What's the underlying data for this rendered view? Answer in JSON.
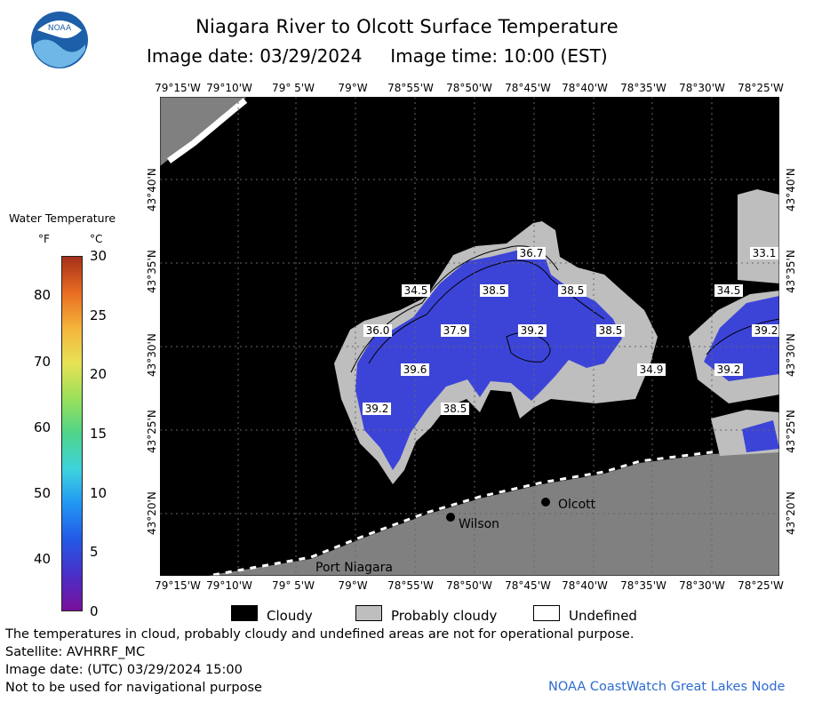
{
  "title": "Niagara River to Olcott Surface Temperature",
  "subtitle": "Image date: 03/29/2024     Image time: 10:00 (EST)",
  "logo_text": "NOAA",
  "lon_labels": [
    "79°15'W",
    "79°10'W",
    "79° 5'W",
    "79°W",
    "78°55'W",
    "78°50'W",
    "78°45'W",
    "78°40'W",
    "78°35'W",
    "78°30'W",
    "78°25'W"
  ],
  "lat_labels": [
    "43°40'N",
    "43°35'N",
    "43°30'N",
    "43°25'N",
    "43°20'N"
  ],
  "colorbar": {
    "title": "Water Temperature",
    "unit_f": "°F",
    "unit_c": "°C",
    "f_ticks": [
      40,
      50,
      60,
      70,
      80
    ],
    "c_ticks": [
      0,
      5,
      10,
      15,
      20,
      25,
      30
    ],
    "range_c": [
      0,
      30
    ]
  },
  "temperature_labels": [
    "36.7",
    "34.5",
    "38.5",
    "38.5",
    "36.0",
    "37.9",
    "39.2",
    "38.5",
    "33.1",
    "34.5",
    "39.2",
    "39.6",
    "39.2",
    "34.9",
    "39.2",
    "38.5"
  ],
  "places": [
    "Olcott",
    "Wilson",
    "Port Niagara"
  ],
  "legend": {
    "items": [
      {
        "label": "Cloudy",
        "color": "#000000"
      },
      {
        "label": "Probably cloudy",
        "color": "#bebebe"
      },
      {
        "label": "Undefined",
        "color": "#ffffff"
      }
    ]
  },
  "footer": {
    "disclaimer": "The temperatures in cloud, probably cloudy and undefined areas are not for operational purpose.",
    "satellite": "Satellite: AVHRRF_MC",
    "utc": "Image date: (UTC) 03/29/2024  15:00",
    "nav": "Not to be used for navigational purpose",
    "credit": "NOAA CoastWatch Great Lakes Node"
  },
  "colors": {
    "cloud": "#000000",
    "probably_cloudy": "#bebebe",
    "land": "#808080",
    "water_cold": "#3c44d8",
    "credit_blue": "#2e6bd1"
  }
}
